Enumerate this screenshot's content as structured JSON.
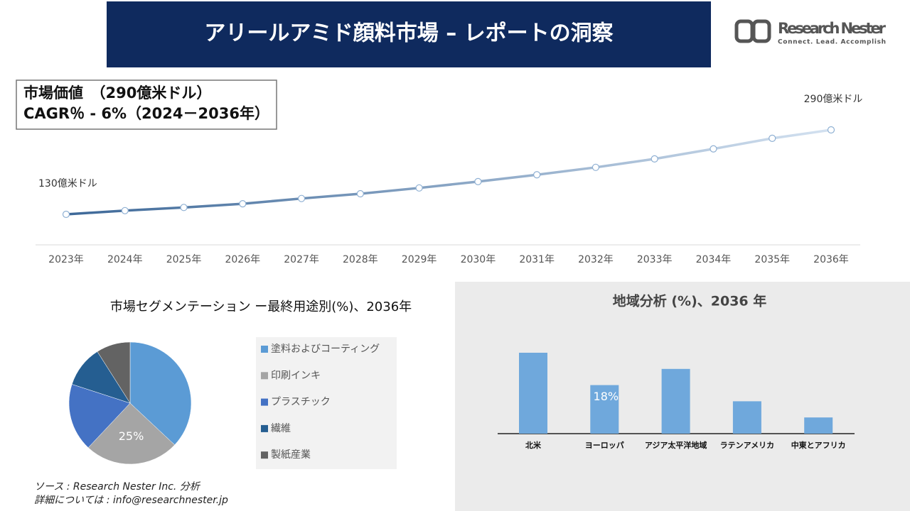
{
  "header": {
    "title": "アリールアミド顔料市場 – レポートの洞察",
    "logo_name": "Research Nester",
    "logo_tagline": "Connect. Lead. Accomplish"
  },
  "summary": {
    "line1": "市場価値　（290億米ドル）",
    "line2": "CAGR％ - 6%（2024－2036年）"
  },
  "chart_data": [
    {
      "type": "line",
      "categories": [
        "2023年",
        "2024年",
        "2025年",
        "2026年",
        "2027年",
        "2028年",
        "2029年",
        "2030年",
        "2031年",
        "2032年",
        "2033年",
        "2034年",
        "2035年",
        "2036年"
      ],
      "values": [
        130,
        137,
        143,
        150,
        160,
        169,
        180,
        192,
        205,
        219,
        235,
        254,
        274,
        290
      ],
      "value_labels": [
        "130億米ドル",
        null,
        null,
        null,
        null,
        null,
        null,
        null,
        null,
        null,
        null,
        null,
        null,
        "290億米ドル"
      ],
      "gradient": [
        "#3d6898",
        "#d3e1f0"
      ]
    },
    {
      "type": "pie",
      "title": "市場セグメンテーション ー最終用途別(%)、2036年",
      "categories": [
        "塗料およびコーティング",
        "印刷インキ",
        "プラスチック",
        "繊維",
        "製紙産業"
      ],
      "values": [
        37,
        25,
        18,
        11,
        9
      ],
      "value_labels": [
        null,
        "25%",
        null,
        null,
        null
      ],
      "colors": [
        "#5b9bd5",
        "#a5a5a5",
        "#4472c4",
        "#255e91",
        "#636363"
      ]
    },
    {
      "type": "bar",
      "title": "地域分析 (%)、2036 年",
      "categories": [
        "北米",
        "ヨーロッパ",
        "アジア太平洋地域",
        "ラテンアメリカ",
        "中東とアフリカ"
      ],
      "values": [
        30,
        18,
        24,
        12,
        6
      ],
      "value_labels": [
        null,
        "18%",
        null,
        null,
        null
      ],
      "color": "#6fa8dc"
    }
  ],
  "footer": {
    "source": "ソース : Research Nester Inc. 分析",
    "contact": "詳細については : info@researchnester.jp"
  }
}
